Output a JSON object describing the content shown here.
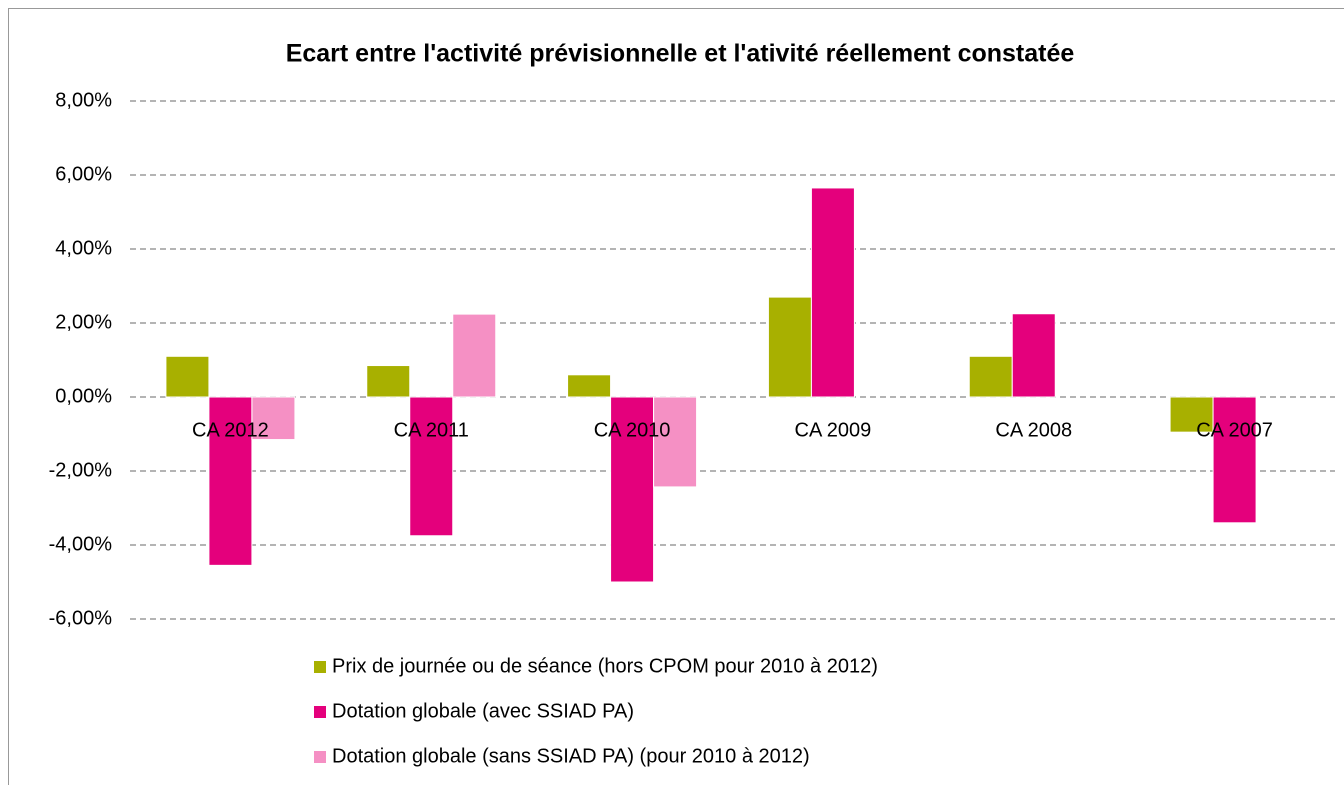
{
  "chart_data": {
    "type": "bar",
    "title": "Ecart entre l'activité prévisionnelle et l'ativité réellement constatée",
    "categories": [
      "CA 2012",
      "CA 2011",
      "CA 2010",
      "CA 2009",
      "CA 2008",
      "CA 2007"
    ],
    "series": [
      {
        "name": "Prix de journée ou de séance (hors CPOM pour 2010 à 2012)",
        "color": "#a8b000",
        "values": [
          1.1,
          0.85,
          0.6,
          2.7,
          1.1,
          -0.95
        ]
      },
      {
        "name": "Dotation globale (avec SSIAD PA)",
        "color": "#e4007c",
        "values": [
          -4.55,
          -3.75,
          -5.0,
          5.65,
          2.25,
          -3.4
        ]
      },
      {
        "name": "Dotation globale (sans SSIAD PA) (pour 2010 à 2012)",
        "color": "#f590c4",
        "values": [
          -1.15,
          2.24,
          -2.43,
          null,
          null,
          null
        ]
      }
    ],
    "ylim": [
      -6,
      8
    ],
    "yticks": [
      {
        "value": -6,
        "label": "-6,00%"
      },
      {
        "value": -4,
        "label": "-4,00%"
      },
      {
        "value": -2,
        "label": "-2,00%"
      },
      {
        "value": 0,
        "label": "0,00%"
      },
      {
        "value": 2,
        "label": "2,00%"
      },
      {
        "value": 4,
        "label": "4,00%"
      },
      {
        "value": 6,
        "label": "6,00%"
      },
      {
        "value": 8,
        "label": "8,00%"
      }
    ],
    "grid": true,
    "legend": "bottom"
  }
}
